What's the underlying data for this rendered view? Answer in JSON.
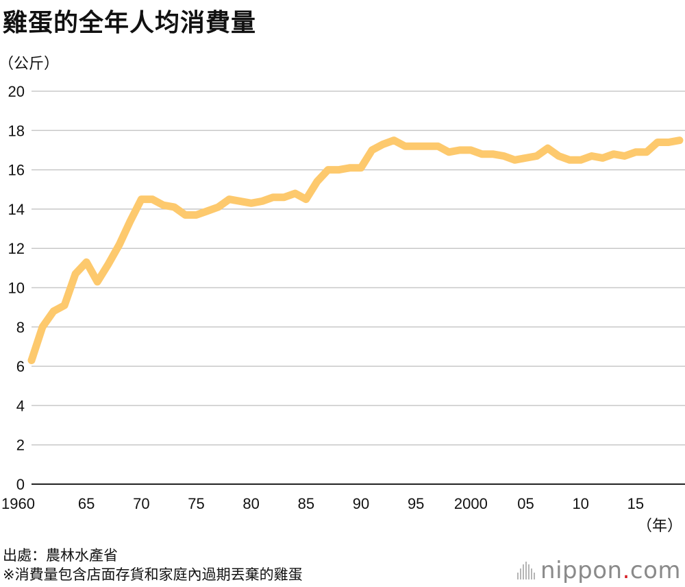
{
  "title": "雞蛋的全年人均消費量",
  "notes": {
    "source": "出處：農林水產省",
    "footnote": "※消費量包含店面存貨和家庭內過期丟棄的雞蛋"
  },
  "brand": {
    "name_main": "nippon",
    "name_dot": ".",
    "name_tld": "com",
    "dot_color": "#d61f26"
  },
  "chart_data": {
    "type": "line",
    "title": "雞蛋的全年人均消費量",
    "ylabel": "（公斤）",
    "xlabel": "（年）",
    "ylim": [
      0,
      20
    ],
    "yticks": [
      0,
      2,
      4,
      6,
      8,
      10,
      12,
      14,
      16,
      18,
      20
    ],
    "grid": true,
    "line_color": "#fdc96d",
    "xlim": [
      1960,
      2019
    ],
    "xticks": [
      {
        "year": 1960,
        "label": "1960"
      },
      {
        "year": 1965,
        "label": "65"
      },
      {
        "year": 1970,
        "label": "70"
      },
      {
        "year": 1975,
        "label": "75"
      },
      {
        "year": 1980,
        "label": "80"
      },
      {
        "year": 1985,
        "label": "85"
      },
      {
        "year": 1990,
        "label": "90"
      },
      {
        "year": 1995,
        "label": "95"
      },
      {
        "year": 2000,
        "label": "2000"
      },
      {
        "year": 2005,
        "label": "05"
      },
      {
        "year": 2010,
        "label": "10"
      },
      {
        "year": 2015,
        "label": "15"
      }
    ],
    "series": [
      {
        "x": [
          1960,
          1961,
          1962,
          1963,
          1964,
          1965,
          1966,
          1967,
          1968,
          1969,
          1970,
          1971,
          1972,
          1973,
          1974,
          1975,
          1976,
          1977,
          1978,
          1979,
          1980,
          1981,
          1982,
          1983,
          1984,
          1985,
          1986,
          1987,
          1988,
          1989,
          1990,
          1991,
          1992,
          1993,
          1994,
          1995,
          1996,
          1997,
          1998,
          1999,
          2000,
          2001,
          2002,
          2003,
          2004,
          2005,
          2006,
          2007,
          2008,
          2009,
          2010,
          2011,
          2012,
          2013,
          2014,
          2015,
          2016,
          2017,
          2018,
          2019
        ],
        "y": [
          6.3,
          8.0,
          8.8,
          9.1,
          10.7,
          11.3,
          10.3,
          11.2,
          12.2,
          13.4,
          14.5,
          14.5,
          14.2,
          14.1,
          13.7,
          13.7,
          13.9,
          14.1,
          14.5,
          14.4,
          14.3,
          14.4,
          14.6,
          14.6,
          14.8,
          14.5,
          15.4,
          16.0,
          16.0,
          16.1,
          16.1,
          17.0,
          17.3,
          17.5,
          17.2,
          17.2,
          17.2,
          17.2,
          16.9,
          17.0,
          17.0,
          16.8,
          16.8,
          16.7,
          16.5,
          16.6,
          16.7,
          17.1,
          16.7,
          16.5,
          16.5,
          16.7,
          16.6,
          16.8,
          16.7,
          16.9,
          16.9,
          17.4,
          17.4,
          17.5
        ]
      }
    ]
  }
}
